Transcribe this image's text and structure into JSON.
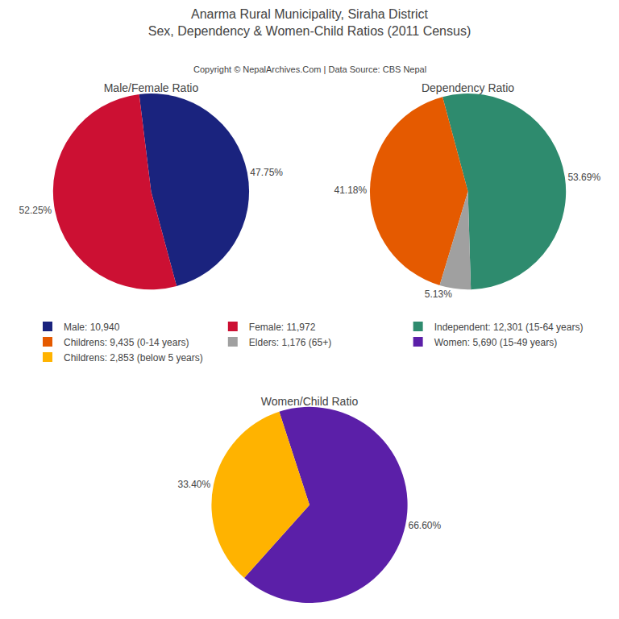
{
  "title": "Anarma Rural Municipality, Siraha District",
  "subtitle": "Sex, Dependency & Women-Child Ratios (2011 Census)",
  "annotations": [
    "Copyright © NepalArchives.Com | Data Source: CBS Nepal"
  ],
  "legend": "center",
  "chart_data": [
    {
      "type": "pie",
      "title": "Male/Female Ratio",
      "categories": [
        "Male: 10,940",
        "Female: 11,972"
      ],
      "values": [
        47.75,
        52.25
      ],
      "value_labels": [
        "47.75%",
        "52.25%"
      ],
      "colors": [
        "#1a237e",
        "#cc1033"
      ],
      "data_labels": true
    },
    {
      "type": "pie",
      "title": "Dependency Ratio",
      "categories": [
        "Independent: 12,301 (15-64 years)",
        "Childrens: 9,435 (0-14 years)",
        "Elders: 1,176 (65+)"
      ],
      "values": [
        53.69,
        41.18,
        5.13
      ],
      "value_labels": [
        "53.69%",
        "41.18%",
        "5.13%"
      ],
      "colors": [
        "#2e8b6e",
        "#e55a00",
        "#a0a0a0"
      ],
      "data_labels": true
    },
    {
      "type": "pie",
      "title": "Women/Child Ratio",
      "categories": [
        "Women: 5,690 (15-49 years)",
        "Childrens: 2,853 (below 5 years)"
      ],
      "values": [
        66.6,
        33.4
      ],
      "value_labels": [
        "66.60%",
        "33.40%"
      ],
      "colors": [
        "#5b1fa8",
        "#ffb300"
      ],
      "data_labels": true
    }
  ]
}
